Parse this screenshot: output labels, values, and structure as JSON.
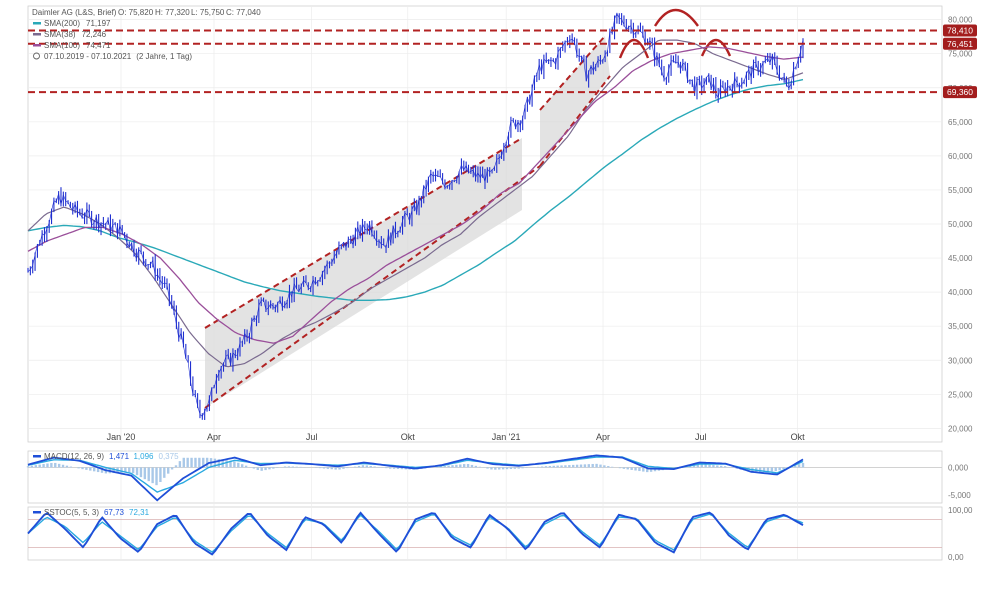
{
  "header": {
    "instrument": "Daimler AG (L&S, Brief)",
    "ohlc": {
      "O": "75,820",
      "H": "77,320",
      "L": "75,750",
      "C": "77,040"
    },
    "range": "07.10.2019 - 07.10.2021",
    "period": "(2 Jahre, 1 Tag)"
  },
  "legend": [
    {
      "name": "SMA(200)",
      "value": "71,197",
      "color": "#2aa9b8"
    },
    {
      "name": "SMA(38)",
      "value": "72,246",
      "color": "#7a6a8f"
    },
    {
      "name": "SMA(100)",
      "value": "74,471",
      "color": "#9a4f9a"
    }
  ],
  "levels": [
    {
      "label": "78,410",
      "value": 78.41,
      "color": "#b22222"
    },
    {
      "label": "76,451",
      "value": 76.451,
      "color": "#b22222"
    },
    {
      "label": "69,360",
      "value": 69.36,
      "color": "#b22222"
    }
  ],
  "macd": {
    "name": "MACD(12, 26, 9)",
    "v1": "1,471",
    "v2": "1,096",
    "v3": "0,375",
    "ticks": [
      "0,000",
      "-5,000"
    ]
  },
  "stoch": {
    "name": "SSTOC(5, 5, 3)",
    "v1": "67,73",
    "v2": "72,31",
    "ticks": [
      "100,00",
      "0,00"
    ]
  },
  "chart_data": {
    "type": "line",
    "title": "Daimler AG (L&S, Brief)",
    "y_ticks": [
      "80,000",
      "75,000",
      "70,000",
      "65,000",
      "60,000",
      "55,000",
      "50,000",
      "45,000",
      "40,000",
      "35,000",
      "30,000",
      "25,000",
      "20,000"
    ],
    "ylim": [
      18,
      82
    ],
    "x_ticks": [
      "Jan '20",
      "Apr",
      "Jul",
      "Okt",
      "Jan '21",
      "Apr",
      "Jul",
      "Okt"
    ],
    "x_tick_t": [
      0.12,
      0.24,
      0.366,
      0.49,
      0.617,
      0.742,
      0.868,
      0.993
    ],
    "price_keypoints_t": [
      0,
      0.02,
      0.04,
      0.06,
      0.08,
      0.1,
      0.12,
      0.14,
      0.16,
      0.18,
      0.2,
      0.22,
      0.235,
      0.245,
      0.26,
      0.28,
      0.3,
      0.32,
      0.34,
      0.36,
      0.38,
      0.4,
      0.42,
      0.44,
      0.46,
      0.48,
      0.5,
      0.52,
      0.54,
      0.56,
      0.58,
      0.6,
      0.62,
      0.64,
      0.66,
      0.68,
      0.7,
      0.72,
      0.74,
      0.76,
      0.78,
      0.8,
      0.82,
      0.84,
      0.86,
      0.88,
      0.89,
      0.9,
      0.92,
      0.94,
      0.96,
      0.98,
      1.0
    ],
    "price_keypoints_v": [
      43,
      49,
      54,
      52,
      51,
      50,
      49,
      46,
      44,
      40,
      32,
      22,
      24,
      29,
      30,
      33,
      38,
      38,
      40,
      41,
      43,
      46,
      48,
      50,
      47,
      50,
      52,
      57,
      56,
      58,
      57,
      57,
      64,
      66,
      73,
      74,
      78,
      72,
      74,
      80,
      79,
      77,
      72,
      74,
      70,
      71,
      69,
      70,
      71,
      73,
      74,
      70,
      77.04
    ],
    "sma200": [
      49,
      49.5,
      49.8,
      49.6,
      49,
      48,
      47.3,
      46.5,
      45.5,
      44.5,
      43.5,
      42.5,
      41.5,
      40.8,
      40.2,
      39.8,
      39.4,
      39.1,
      38.8,
      38.8,
      38.9,
      39.3,
      40,
      41,
      42.5,
      44,
      45.8,
      47.5,
      49.8,
      52,
      54,
      56.2,
      58.4,
      60.3,
      62.3,
      64,
      65.5,
      66.8,
      68,
      69,
      69.8,
      70.3,
      70.6,
      71.2
    ],
    "sma38": [
      49,
      51.5,
      52.5,
      51.5,
      50,
      48,
      45.5,
      42,
      38,
      34,
      31,
      29,
      29.5,
      31,
      33,
      34.5,
      35.6,
      37,
      38.5,
      40.5,
      42,
      43.5,
      45,
      47,
      48.5,
      51,
      53,
      55,
      57,
      60,
      63,
      67,
      70,
      73,
      75,
      77,
      77,
      76.5,
      75,
      74,
      73,
      72,
      71.2,
      72.2
    ],
    "sma100": [
      46,
      47.5,
      48.5,
      49.5,
      49.5,
      48.5,
      47,
      45,
      42,
      38.5,
      36,
      34,
      33,
      32.5,
      33.5,
      36,
      38.5,
      40.5,
      42,
      44,
      45.5,
      47,
      48.5,
      50,
      52,
      54.5,
      56,
      59,
      62,
      65,
      68,
      70,
      72.5,
      74,
      75,
      75.5,
      76,
      75.8,
      75.2,
      74.6,
      74.2,
      74.5
    ],
    "macd_line": [
      0.5,
      1.8,
      1.2,
      -0.5,
      -1.5,
      -6,
      -2,
      0.8,
      1.8,
      0.4,
      0.9,
      0.6,
      0.2,
      0.9,
      0.3,
      -0.2,
      0.4,
      1.6,
      0.6,
      0.3,
      0.8,
      1.5,
      2.2,
      1.8,
      -0.2,
      -0.3,
      0.9,
      0.7,
      -0.8,
      -1.3,
      1.47
    ],
    "macd_signal": [
      0.4,
      1.4,
      1.3,
      0,
      -1.1,
      -4.5,
      -2.8,
      0,
      1.3,
      0.7,
      0.8,
      0.6,
      0.4,
      0.7,
      0.4,
      0,
      0.3,
      1.3,
      0.8,
      0.4,
      0.7,
      1.3,
      1.9,
      1.9,
      0.2,
      -0.2,
      0.6,
      0.6,
      -0.4,
      -1,
      1.096
    ],
    "stoch_k": [
      50,
      95,
      60,
      20,
      85,
      40,
      10,
      70,
      90,
      30,
      5,
      60,
      95,
      45,
      15,
      85,
      70,
      30,
      95,
      50,
      10,
      80,
      95,
      40,
      20,
      90,
      60,
      15,
      75,
      95,
      50,
      20,
      90,
      80,
      30,
      10,
      85,
      95,
      45,
      15,
      80,
      90,
      67.73
    ],
    "stoch_d": [
      50,
      85,
      65,
      30,
      75,
      45,
      15,
      65,
      85,
      35,
      10,
      55,
      90,
      50,
      20,
      80,
      72,
      35,
      90,
      55,
      15,
      75,
      92,
      45,
      25,
      85,
      62,
      20,
      70,
      90,
      55,
      25,
      85,
      82,
      35,
      15,
      80,
      92,
      50,
      20,
      75,
      88,
      72.31
    ]
  }
}
